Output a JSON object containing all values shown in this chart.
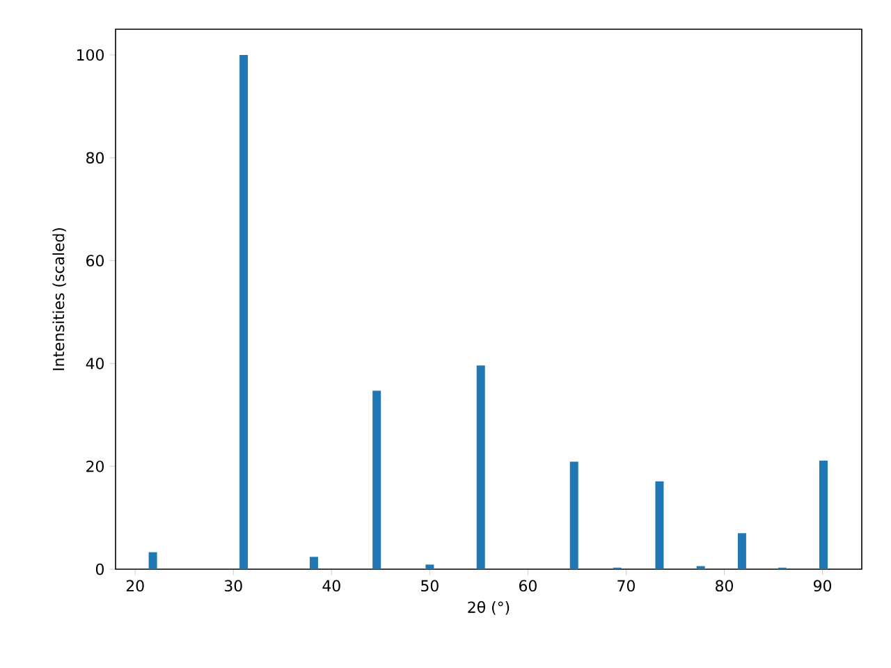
{
  "chart_data": {
    "type": "bar",
    "xlabel": "2θ (°)",
    "ylabel": "Intensities (scaled)",
    "x": [
      21.8,
      31.05,
      38.2,
      44.6,
      50.0,
      55.2,
      64.7,
      69.1,
      73.4,
      77.6,
      81.8,
      85.9,
      90.1
    ],
    "values": [
      3.3,
      100,
      2.4,
      34.7,
      0.9,
      39.6,
      20.9,
      0.3,
      17.1,
      0.6,
      7.0,
      0.3,
      21.1
    ],
    "color": "#1f77b4",
    "xlim": [
      18,
      94
    ],
    "ylim": [
      0,
      105
    ],
    "xticks": [
      20,
      30,
      40,
      50,
      60,
      70,
      80,
      90
    ],
    "yticks": [
      0,
      20,
      40,
      60,
      80,
      100
    ]
  }
}
